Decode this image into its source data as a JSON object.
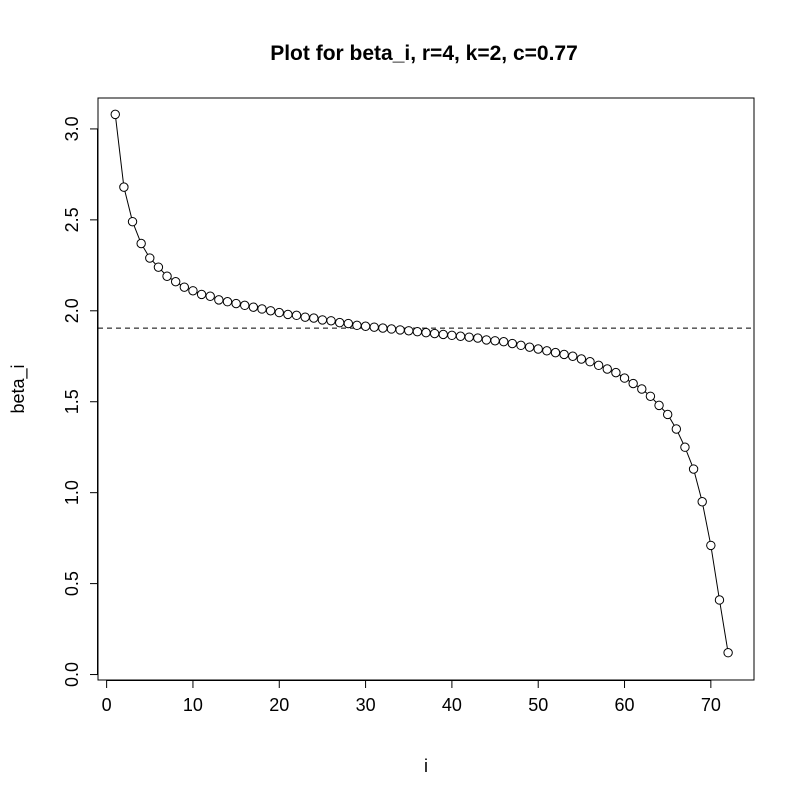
{
  "chart_data": {
    "type": "line",
    "title": "Plot for beta_i, r=4, k=2, c=0.77",
    "xlabel": "i",
    "ylabel": "beta_i",
    "xlim": [
      -1,
      75
    ],
    "ylim": [
      -0.03,
      3.17
    ],
    "x_ticks": [
      0,
      10,
      20,
      30,
      40,
      50,
      60,
      70
    ],
    "y_ticks": [
      0.0,
      0.5,
      1.0,
      1.5,
      2.0,
      2.5,
      3.0
    ],
    "x_tick_labels": [
      "0",
      "10",
      "20",
      "30",
      "40",
      "50",
      "60",
      "70"
    ],
    "y_tick_labels": [
      "0.0",
      "0.5",
      "1.0",
      "1.5",
      "2.0",
      "2.5",
      "3.0"
    ],
    "grid": false,
    "reference_line": {
      "y": 1.905,
      "style": "dashed"
    },
    "series": [
      {
        "marker": "open-circle",
        "line": "solid",
        "color": "#000000",
        "x": [
          1,
          2,
          3,
          4,
          5,
          6,
          7,
          8,
          9,
          10,
          11,
          12,
          13,
          14,
          15,
          16,
          17,
          18,
          19,
          20,
          21,
          22,
          23,
          24,
          25,
          26,
          27,
          28,
          29,
          30,
          31,
          32,
          33,
          34,
          35,
          36,
          37,
          38,
          39,
          40,
          41,
          42,
          43,
          44,
          45,
          46,
          47,
          48,
          49,
          50,
          51,
          52,
          53,
          54,
          55,
          56,
          57,
          58,
          59,
          60,
          61,
          62,
          63,
          64,
          65,
          66,
          67,
          68,
          69,
          70,
          71,
          72
        ],
        "y": [
          3.08,
          2.68,
          2.49,
          2.37,
          2.29,
          2.24,
          2.19,
          2.16,
          2.13,
          2.11,
          2.09,
          2.08,
          2.06,
          2.05,
          2.04,
          2.03,
          2.02,
          2.01,
          2.0,
          1.99,
          1.98,
          1.975,
          1.965,
          1.96,
          1.95,
          1.945,
          1.935,
          1.93,
          1.92,
          1.915,
          1.91,
          1.905,
          1.9,
          1.895,
          1.89,
          1.885,
          1.88,
          1.875,
          1.87,
          1.865,
          1.86,
          1.855,
          1.85,
          1.84,
          1.835,
          1.83,
          1.82,
          1.81,
          1.8,
          1.79,
          1.78,
          1.77,
          1.76,
          1.75,
          1.735,
          1.72,
          1.7,
          1.68,
          1.66,
          1.63,
          1.6,
          1.57,
          1.53,
          1.48,
          1.43,
          1.35,
          1.25,
          1.13,
          0.95,
          0.71,
          0.41,
          0.12
        ]
      }
    ]
  }
}
